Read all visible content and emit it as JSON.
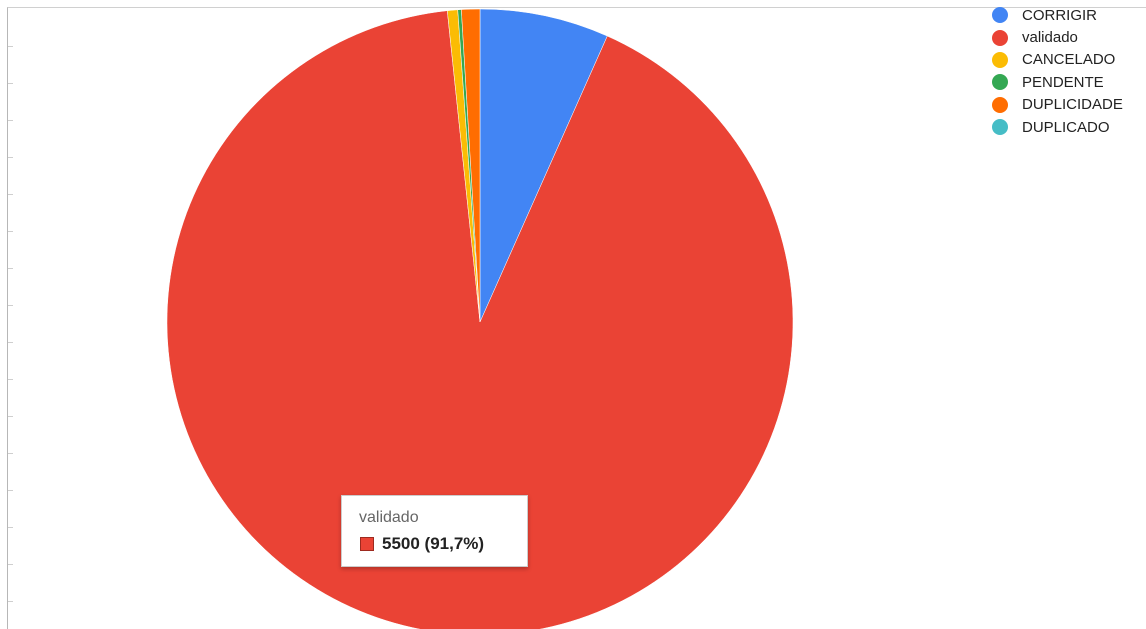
{
  "chart_data": {
    "type": "pie",
    "title": "",
    "slices": [
      {
        "label": "CORRIGIR",
        "value": 400,
        "color": "#4285f4"
      },
      {
        "label": "validado",
        "value": 5500,
        "color": "#ea4335"
      },
      {
        "label": "CANCELADO",
        "value": 32,
        "color": "#fbbc04"
      },
      {
        "label": "PENDENTE",
        "value": 11,
        "color": "#34a853"
      },
      {
        "label": "DUPLICIDADE",
        "value": 57,
        "color": "#ff6d01"
      },
      {
        "label": "DUPLICADO",
        "value": 0,
        "color": "#46bdc6"
      }
    ],
    "legend_position": "top-right",
    "tooltip": {
      "label": "validado",
      "value_text": "5500 (91,7%)",
      "color": "#ea4335"
    }
  }
}
